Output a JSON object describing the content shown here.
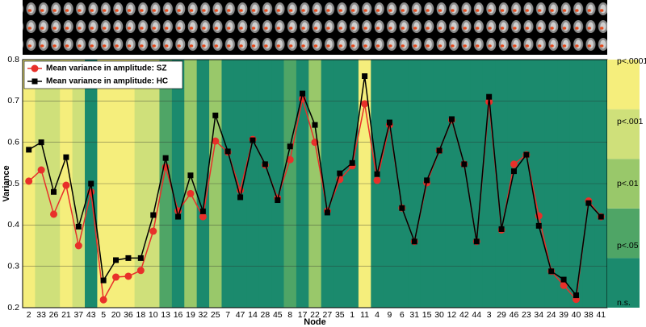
{
  "chart_data": {
    "type": "line",
    "xlabel": "Node",
    "ylabel": "Variance",
    "categories": [
      "2",
      "33",
      "26",
      "21",
      "37",
      "43",
      "5",
      "20",
      "36",
      "18",
      "10",
      "13",
      "16",
      "19",
      "32",
      "25",
      "7",
      "47",
      "14",
      "28",
      "45",
      "8",
      "17",
      "22",
      "27",
      "35",
      "1",
      "11",
      "4",
      "9",
      "6",
      "31",
      "15",
      "30",
      "12",
      "42",
      "44",
      "3",
      "29",
      "46",
      "23",
      "34",
      "24",
      "39",
      "40",
      "38",
      "41"
    ],
    "series": [
      {
        "name": "Mean variance in amplitude: SZ",
        "color": "#e8302a",
        "marker": "circle",
        "values": [
          0.506,
          0.533,
          0.426,
          0.496,
          0.35,
          0.48,
          0.219,
          0.274,
          0.276,
          0.29,
          0.385,
          0.54,
          0.434,
          0.476,
          0.42,
          0.603,
          0.576,
          0.484,
          0.607,
          0.545,
          0.465,
          0.558,
          0.705,
          0.6,
          0.434,
          0.51,
          0.543,
          0.693,
          0.508,
          0.642,
          0.441,
          0.36,
          0.502,
          0.58,
          0.654,
          0.547,
          0.36,
          0.698,
          0.388,
          0.547,
          0.57,
          0.422,
          0.288,
          0.254,
          0.22,
          0.458,
          0.42
        ]
      },
      {
        "name": "Mean variance in amplitude: HC",
        "color": "#000000",
        "marker": "square",
        "values": [
          0.582,
          0.6,
          0.48,
          0.564,
          0.396,
          0.5,
          0.266,
          0.315,
          0.32,
          0.32,
          0.424,
          0.562,
          0.42,
          0.52,
          0.433,
          0.665,
          0.578,
          0.467,
          0.605,
          0.547,
          0.46,
          0.59,
          0.718,
          0.642,
          0.43,
          0.525,
          0.55,
          0.76,
          0.523,
          0.648,
          0.441,
          0.36,
          0.508,
          0.58,
          0.656,
          0.547,
          0.36,
          0.71,
          0.39,
          0.53,
          0.57,
          0.398,
          0.288,
          0.268,
          0.23,
          0.453,
          0.42
        ]
      }
    ],
    "significance": [
      4,
      3,
      3,
      4,
      3,
      0,
      4,
      4,
      4,
      3,
      3,
      1,
      0,
      2,
      0,
      2,
      0,
      0,
      0,
      0,
      0,
      1,
      0,
      2,
      0,
      0,
      0,
      4,
      0,
      0,
      0,
      0,
      0,
      0,
      0,
      0,
      0,
      0,
      0,
      0,
      0,
      0,
      0,
      0,
      0,
      0,
      0
    ],
    "colorbar": {
      "labels": [
        "n.s.",
        "p<.05",
        "p<.01",
        "p<.001",
        "p<.0001"
      ],
      "colors": [
        "#1b8a6d",
        "#4fa566",
        "#99c86a",
        "#cfe07a",
        "#f5ee7c"
      ]
    },
    "ylim": [
      0.2,
      0.8
    ],
    "yticks": [
      0.2,
      0.3,
      0.4,
      0.5,
      0.6,
      0.7,
      0.8
    ],
    "grid": true,
    "legend": "upper left"
  }
}
